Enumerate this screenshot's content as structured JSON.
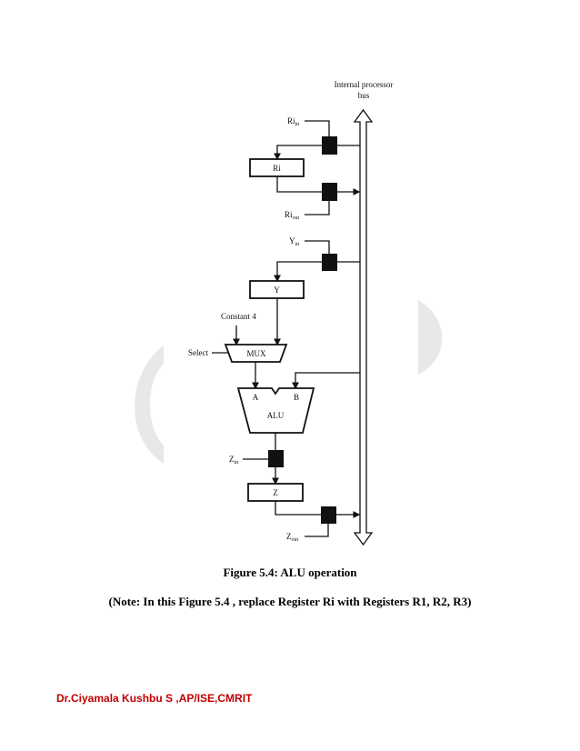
{
  "diagram": {
    "bus_label_line1": "Internal processor",
    "bus_label_line2": "bus",
    "ri_in": {
      "base": "Ri",
      "sub": "in"
    },
    "ri_label": "Ri",
    "ri_out": {
      "base": "Ri",
      "sub": "out"
    },
    "y_in": {
      "base": "Y",
      "sub": "in"
    },
    "y_label": "Y",
    "constant_label": "Constant 4",
    "select_label": "Select",
    "mux_label": "MUX",
    "alu_a": "A",
    "alu_b": "B",
    "alu_label": "ALU",
    "z_in": {
      "base": "Z",
      "sub": "in"
    },
    "z_label": "Z",
    "z_out": {
      "base": "Z",
      "sub": "out"
    }
  },
  "caption": "Figure 5.4: ALU operation",
  "note": "(Note: In this Figure 5.4 , replace Register Ri with Registers R1, R2, R3)",
  "footer": "Dr.Ciyamala Kushbu S ,AP/ISE,CMRIT",
  "colors": {
    "footer": "#c00000",
    "watermark": "#e8e8e8"
  }
}
